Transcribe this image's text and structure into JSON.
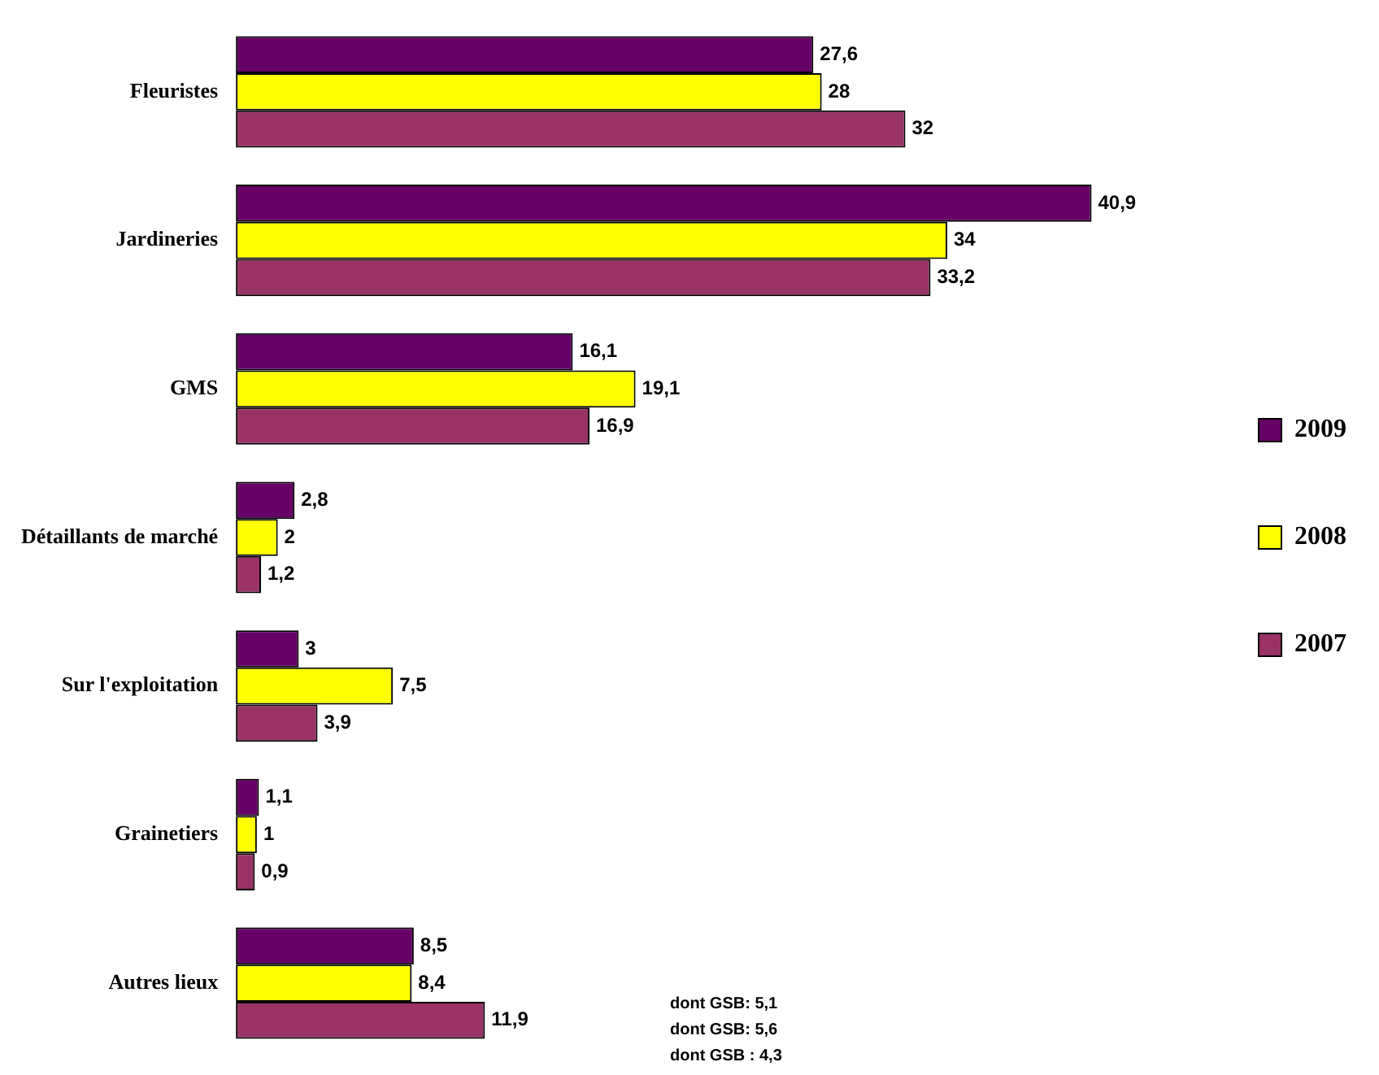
{
  "chart_data": {
    "type": "bar",
    "orientation": "horizontal",
    "categories": [
      "Fleuristes",
      "Jardineries",
      "GMS",
      "Détaillants de marché",
      "Sur l'exploitation",
      "Grainetiers",
      "Autres lieux"
    ],
    "series": [
      {
        "name": "2009",
        "color": "#660066",
        "values": [
          27.6,
          40.9,
          16.1,
          2.8,
          3,
          1.1,
          8.5
        ],
        "value_labels": [
          "27,6",
          "40,9",
          "16,1",
          "2,8",
          "3",
          "1,1",
          "8,5"
        ]
      },
      {
        "name": "2008",
        "color": "#ffff00",
        "values": [
          28,
          34,
          19.1,
          2,
          7.5,
          1,
          8.4
        ],
        "value_labels": [
          "28",
          "34",
          "19,1",
          "2",
          "7,5",
          "1",
          "8,4"
        ]
      },
      {
        "name": "2007",
        "color": "#993366",
        "values": [
          32,
          33.2,
          16.9,
          1.2,
          3.9,
          0.9,
          11.9
        ],
        "value_labels": [
          "32",
          "33,2",
          "16,9",
          "1,2",
          "3,9",
          "0,9",
          "11,9"
        ]
      }
    ],
    "legend": "right",
    "annotations": [
      "dont GSB: 5,1",
      "dont GSB: 5,6",
      "dont GSB : 4,3"
    ]
  }
}
